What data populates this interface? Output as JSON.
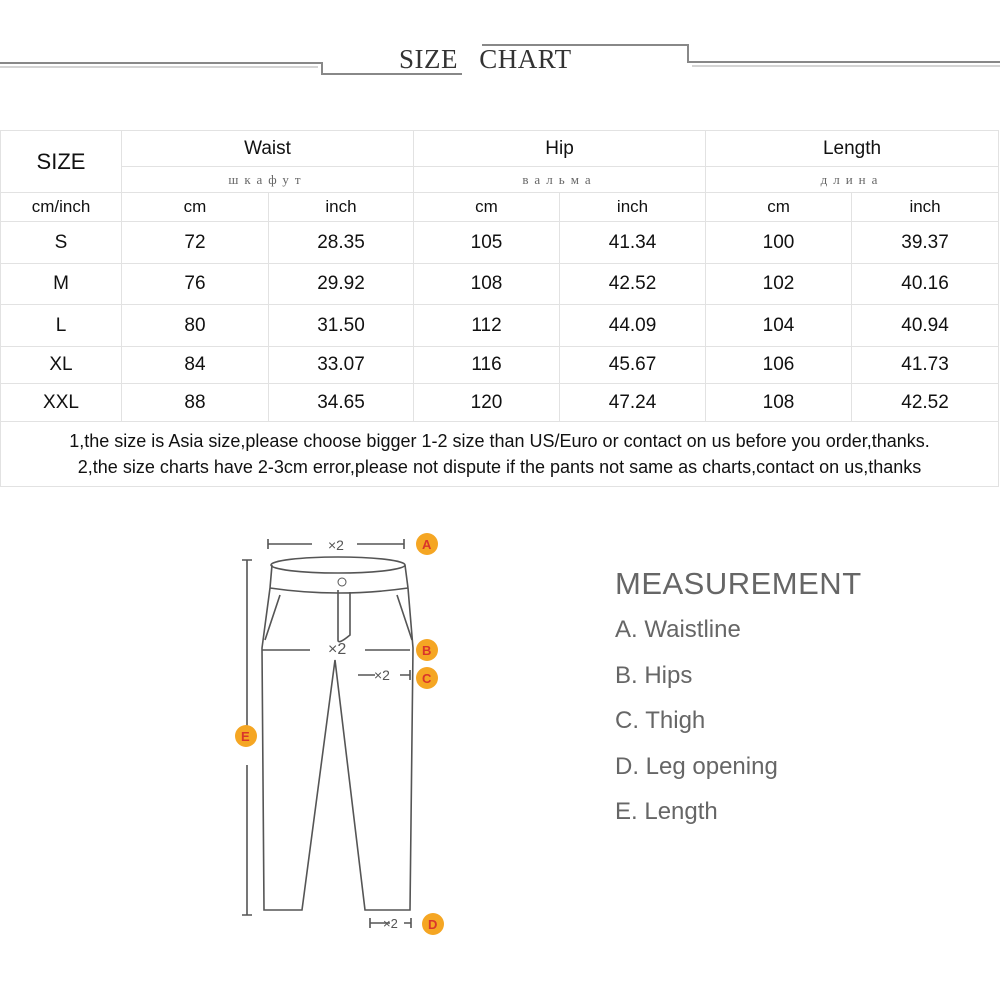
{
  "title": {
    "word1": "SIZE",
    "word2": "CHART"
  },
  "table": {
    "size_header": "SIZE",
    "groups": [
      {
        "label": "Waist",
        "sub": "шкафут"
      },
      {
        "label": "Hip",
        "sub": "вальма"
      },
      {
        "label": "Length",
        "sub": "длина"
      }
    ],
    "unit_label": "cm/inch",
    "units": [
      "cm",
      "inch",
      "cm",
      "inch",
      "cm",
      "inch"
    ],
    "rows": [
      [
        "S",
        "72",
        "28.35",
        "105",
        "41.34",
        "100",
        "39.37"
      ],
      [
        "M",
        "76",
        "29.92",
        "108",
        "42.52",
        "102",
        "40.16"
      ],
      [
        "L",
        "80",
        "31.50",
        "112",
        "44.09",
        "104",
        "40.94"
      ],
      [
        "XL",
        "84",
        "33.07",
        "116",
        "45.67",
        "106",
        "41.73"
      ],
      [
        "XXL",
        "88",
        "34.65",
        "120",
        "47.24",
        "108",
        "42.52"
      ]
    ],
    "notes": [
      "1,the size is Asia size,please choose bigger 1-2 size than US/Euro or contact on us before you order,thanks.",
      "2,the size charts have 2-3cm error,please not dispute if the pants not same as charts,contact on us,thanks"
    ]
  },
  "diagram": {
    "multiplier": "×2",
    "markers": [
      "A",
      "B",
      "C",
      "D",
      "E"
    ]
  },
  "measurement": {
    "title": "MEASUREMENT",
    "items": [
      "A. Waistline",
      "B. Hips",
      "C. Thigh",
      "D. Leg opening",
      "E. Length"
    ]
  }
}
